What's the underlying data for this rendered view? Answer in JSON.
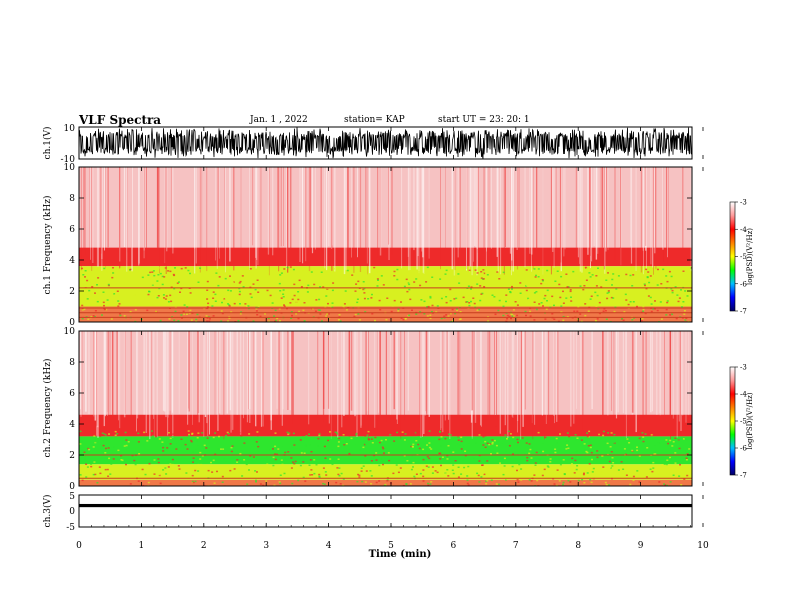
{
  "header": {
    "title": "VLF Spectra",
    "date": "Jan. 1 , 2022",
    "station": "station= KAP",
    "start": "start UT =   23: 20: 1"
  },
  "chart_data": [
    {
      "type": "line",
      "panel": "ch1-waveform",
      "ylabel": "ch.1(V)",
      "ylim": [
        -10,
        10
      ],
      "yticks": [
        "10",
        "-10"
      ],
      "xlim": [
        0,
        10
      ]
    },
    {
      "type": "heatmap",
      "panel": "ch1-spectrogram",
      "ylabel": "ch.1 Frequency (kHz)",
      "ylim": [
        0,
        10
      ],
      "yticks": [
        "0",
        "2",
        "4",
        "6",
        "8",
        "10"
      ],
      "xlim": [
        0,
        10
      ],
      "bands": [
        {
          "from": 4.8,
          "to": 10,
          "level": "pink"
        },
        {
          "from": 3.6,
          "to": 4.8,
          "level": "red"
        },
        {
          "from": 1.0,
          "to": 3.6,
          "level": "yellow"
        },
        {
          "from": 0.0,
          "to": 1.0,
          "level": "orange"
        }
      ],
      "lines_khz": [
        2.2,
        0.9,
        0.6,
        0.3
      ]
    },
    {
      "type": "heatmap",
      "panel": "ch2-spectrogram",
      "ylabel": "ch.2 Frequency (kHz)",
      "ylim": [
        0,
        10
      ],
      "yticks": [
        "0",
        "2",
        "4",
        "6",
        "8",
        "10"
      ],
      "xlim": [
        0,
        10
      ],
      "bands": [
        {
          "from": 4.6,
          "to": 10,
          "level": "pink"
        },
        {
          "from": 3.2,
          "to": 4.6,
          "level": "red"
        },
        {
          "from": 1.4,
          "to": 3.2,
          "level": "green"
        },
        {
          "from": 0.4,
          "to": 1.4,
          "level": "yellow"
        },
        {
          "from": 0.0,
          "to": 0.4,
          "level": "orange"
        }
      ],
      "lines_khz": [
        2.0,
        0.5
      ]
    },
    {
      "type": "line",
      "panel": "ch3-waveform",
      "ylabel": "ch.3(V)",
      "ylim": [
        -5,
        5
      ],
      "yticks": [
        "5",
        "0",
        "-5"
      ],
      "xlim": [
        0,
        10
      ],
      "xlabel": "Time (min)",
      "xticks": [
        "0",
        "1",
        "2",
        "3",
        "4",
        "5",
        "6",
        "7",
        "8",
        "9",
        "10"
      ],
      "signal_band_v": [
        1.2,
        2.2
      ]
    }
  ],
  "colorbar": {
    "label": "log(PSD)(V²/Hz)",
    "ticks": [
      "-3",
      "-4",
      "-5",
      "-6",
      "-7"
    ],
    "range": [
      -7,
      -3
    ],
    "colors": [
      "#000066",
      "#0000ff",
      "#00bfff",
      "#00ff00",
      "#ffff00",
      "#ff8000",
      "#ff0000",
      "#ff9999",
      "#ffffff"
    ]
  },
  "colors": {
    "pink": "#f6c2c2",
    "red": "#ee2a2a",
    "yellow": "#d8f020",
    "green": "#2ee62e",
    "orange": "#f07848"
  }
}
